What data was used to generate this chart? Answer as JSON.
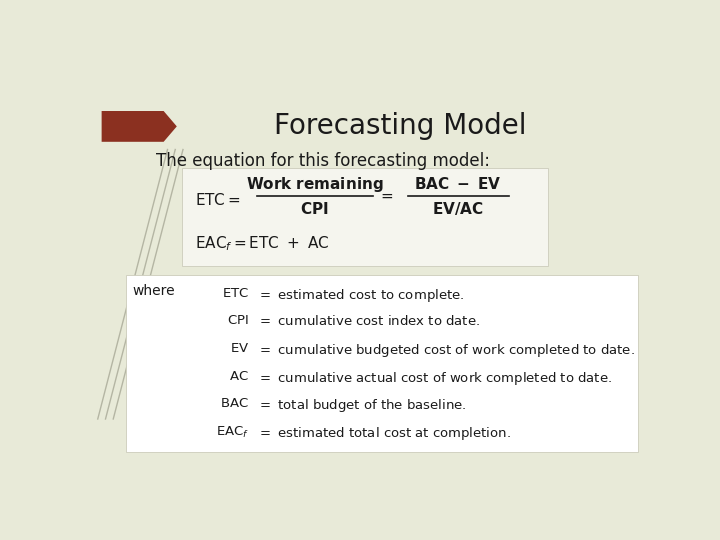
{
  "title": "Forecasting Model",
  "title_fontsize": 20,
  "subtitle": "The equation for this forecasting model:",
  "subtitle_fontsize": 12,
  "background_color": "#e8ead8",
  "formula_box_color": "#f5f5ee",
  "where_box_color": "#ffffff",
  "arrow_color": "#8b3020",
  "stem_color": "#8a8a78",
  "where_label": "where",
  "text_color": "#1a1a1a",
  "formula_fontsize": 11,
  "where_fontsize": 9.5
}
